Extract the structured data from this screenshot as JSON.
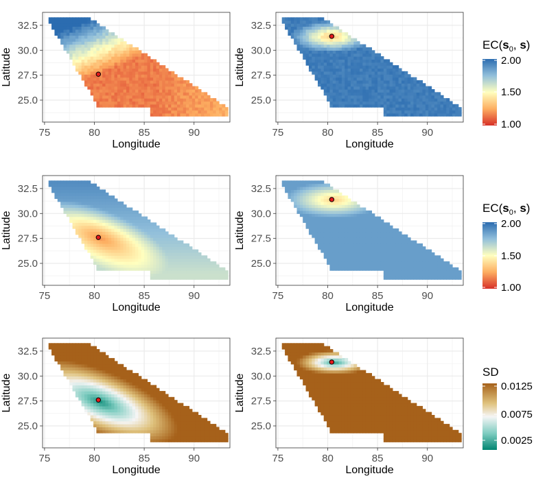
{
  "figure": {
    "xlabel": "Longitude",
    "ylabel": "Latitude",
    "x_ticks": [
      "75",
      "80",
      "85",
      "90"
    ],
    "y_ticks": [
      "25.0",
      "27.5",
      "30.0",
      "32.5"
    ]
  },
  "legends": [
    {
      "title_main": "EC(",
      "title_s0": "s",
      "title_sub": "0",
      "title_sep": ", ",
      "title_s": "s",
      "title_close": ")",
      "labels": [
        "2.00",
        "1.50",
        "1.00"
      ]
    },
    {
      "title_main": "EC(",
      "title_s0": "s",
      "title_sub": "0",
      "title_sep": ", ",
      "title_s": "s",
      "title_close": ")",
      "labels": [
        "2.00",
        "1.50",
        "1.00"
      ]
    },
    {
      "title": "SD",
      "labels": [
        "0.0125",
        "0.0075",
        "0.0025"
      ]
    }
  ],
  "colors": {
    "ec_low": "#d73027",
    "ec_mid": "#ffffbf",
    "ec_high": "#4575b4",
    "sd_low": "#01665e",
    "sd_mid": "#f5f5f5",
    "sd_high": "#a6611a",
    "grid": "#ebebeb",
    "marker": "#e41a1c"
  },
  "chart_data": [
    {
      "type": "heatmap",
      "row": 1,
      "col": 1,
      "quantity": "EC",
      "center": [
        80.4,
        27.6
      ],
      "xlim": [
        75,
        93.5
      ],
      "ylim": [
        23,
        33.5
      ],
      "scale": [
        1.0,
        2.0
      ]
    },
    {
      "type": "heatmap",
      "row": 1,
      "col": 2,
      "quantity": "EC",
      "center": [
        80.4,
        31.4
      ],
      "xlim": [
        75,
        93.5
      ],
      "ylim": [
        23,
        33.5
      ],
      "scale": [
        1.0,
        2.0
      ]
    },
    {
      "type": "heatmap",
      "row": 2,
      "col": 1,
      "quantity": "EC",
      "center": [
        80.4,
        27.6
      ],
      "xlim": [
        75,
        93.5
      ],
      "ylim": [
        23,
        33.5
      ],
      "scale": [
        1.0,
        2.0
      ]
    },
    {
      "type": "heatmap",
      "row": 2,
      "col": 2,
      "quantity": "EC",
      "center": [
        80.4,
        31.4
      ],
      "xlim": [
        75,
        93.5
      ],
      "ylim": [
        23,
        33.5
      ],
      "scale": [
        1.0,
        2.0
      ]
    },
    {
      "type": "heatmap",
      "row": 3,
      "col": 1,
      "quantity": "SD",
      "center": [
        80.4,
        27.6
      ],
      "xlim": [
        75,
        93.5
      ],
      "ylim": [
        23,
        33.5
      ],
      "scale": [
        0.0,
        0.0135
      ]
    },
    {
      "type": "heatmap",
      "row": 3,
      "col": 2,
      "quantity": "SD",
      "center": [
        80.4,
        31.4
      ],
      "xlim": [
        75,
        93.5
      ],
      "ylim": [
        23,
        33.5
      ],
      "scale": [
        0.0,
        0.0135
      ]
    }
  ]
}
